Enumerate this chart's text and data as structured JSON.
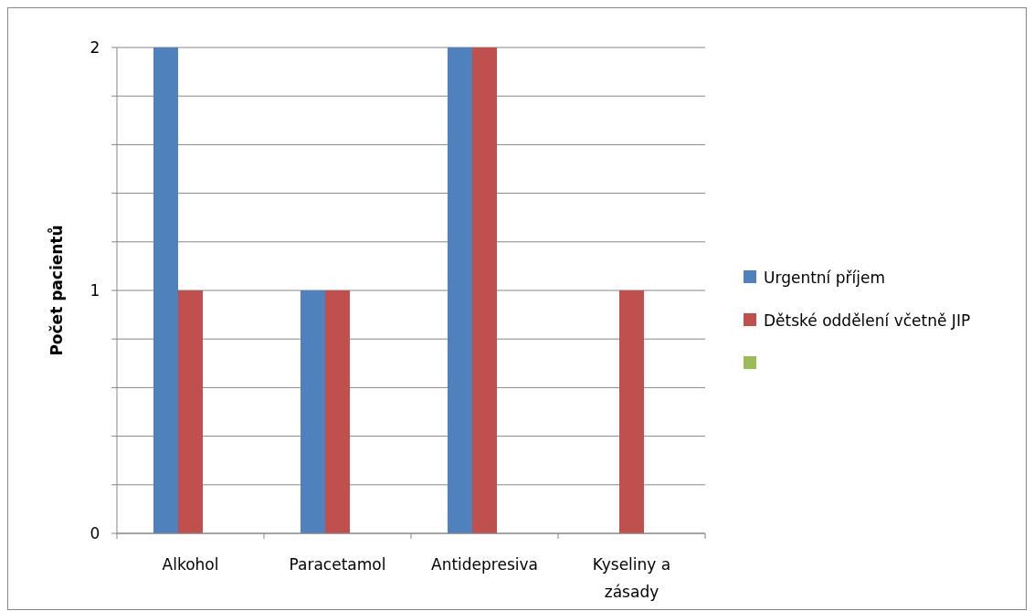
{
  "chart_data": {
    "type": "bar",
    "ylabel": "Počet pacientů",
    "categories": [
      "Alkohol",
      "Paracetamol",
      "Antidepresiva",
      "Kyseliny a zásady"
    ],
    "series": [
      {
        "name": "Urgentní příjem",
        "color": "#4f81bd",
        "values": [
          2,
          1,
          2,
          null
        ]
      },
      {
        "name": "Dětské oddělení včetně JIP",
        "color": "#c0504d",
        "values": [
          1,
          1,
          2,
          1
        ]
      },
      {
        "color": "#9bbb59",
        "values": [
          null,
          null,
          null,
          null
        ]
      }
    ],
    "ylim": [
      0,
      2
    ],
    "yticks": [
      0,
      {
        "value": 0.2,
        "label": null
      },
      {
        "value": 0.4,
        "label": null
      },
      {
        "value": 0.6,
        "label": null
      },
      {
        "value": 0.8,
        "label": null
      },
      1,
      {
        "value": 1.2,
        "label": null
      },
      {
        "value": 1.4,
        "label": null
      },
      {
        "value": 1.6,
        "label": null
      },
      {
        "value": 1.8,
        "label": null
      },
      2
    ],
    "grid": "y",
    "legend": "right"
  }
}
